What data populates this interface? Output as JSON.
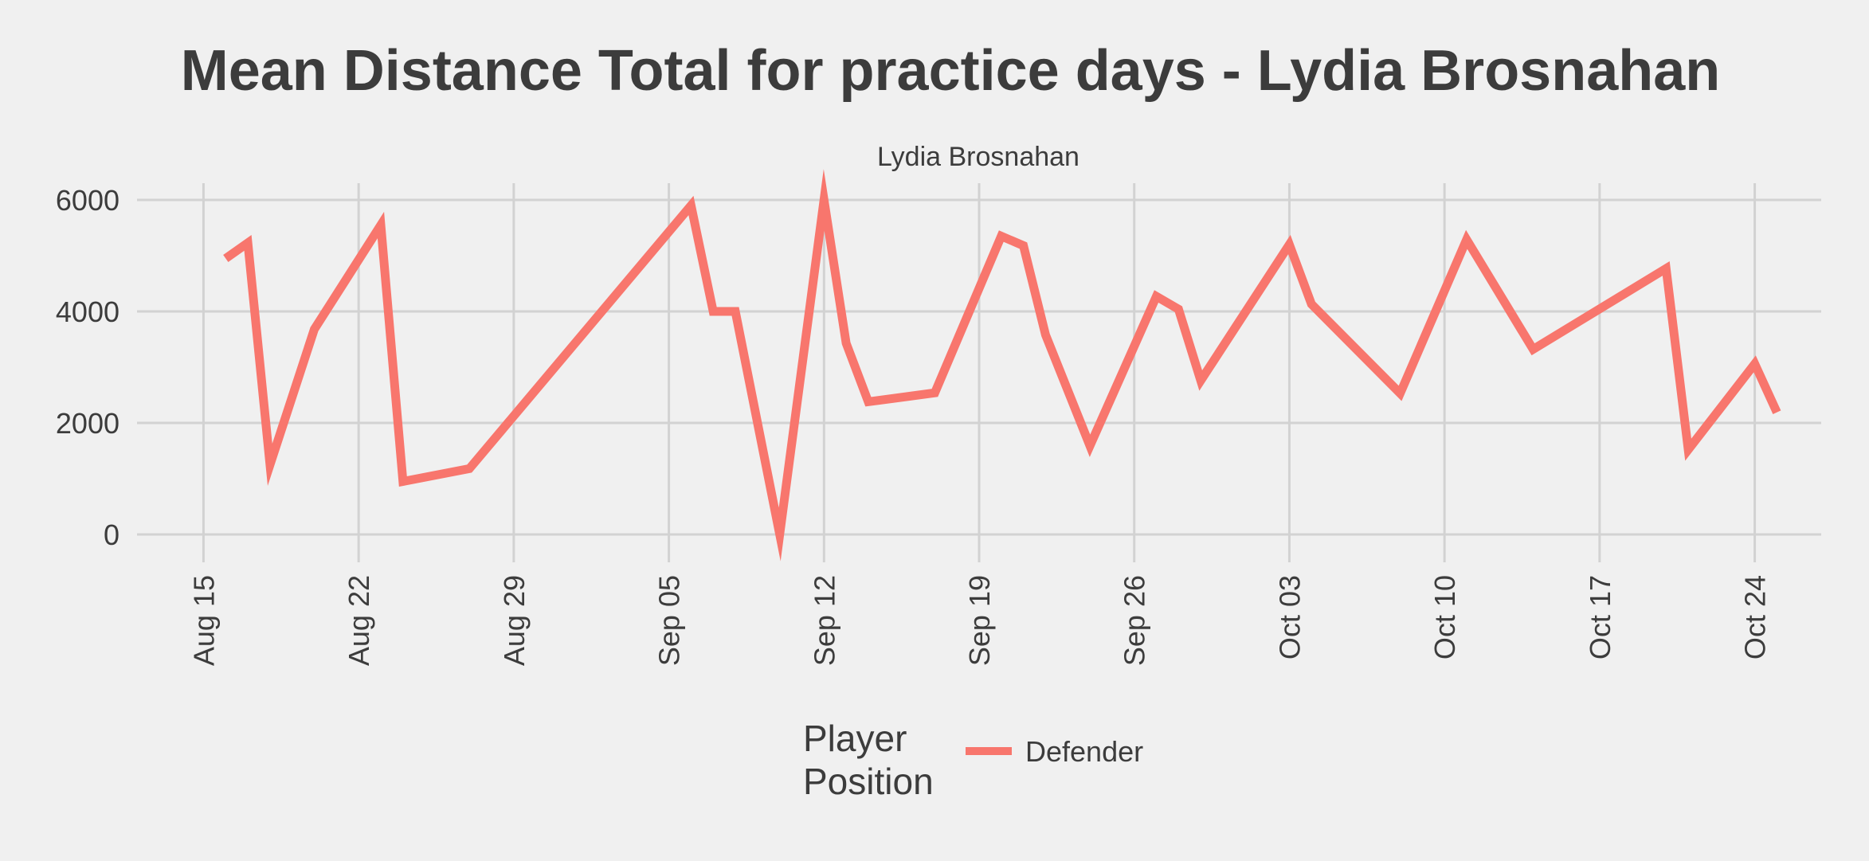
{
  "chart_data": {
    "type": "line",
    "title": "Mean Distance Total for practice days -  Lydia Brosnahan",
    "facet_label": "Lydia Brosnahan",
    "xlabel": "",
    "ylabel": "",
    "ylim": [
      0,
      6000
    ],
    "xlim": [
      "2021-08-12",
      "2021-10-27"
    ],
    "y_ticks": [
      0,
      2000,
      4000,
      6000
    ],
    "y_tick_labels": [
      "0",
      "2000",
      "4000",
      "6000"
    ],
    "x_ticks": [
      "2021-08-15",
      "2021-08-22",
      "2021-08-29",
      "2021-09-05",
      "2021-09-12",
      "2021-09-19",
      "2021-09-26",
      "2021-10-03",
      "2021-10-10",
      "2021-10-17",
      "2021-10-24"
    ],
    "x_tick_labels": [
      "Aug 15",
      "Aug 22",
      "Aug 29",
      "Sep 05",
      "Sep 12",
      "Sep 19",
      "Sep 26",
      "Oct 03",
      "Oct 10",
      "Oct 17",
      "Oct 24"
    ],
    "grid": true,
    "legend": {
      "title": [
        "Player",
        "Position"
      ],
      "placement": "bottom"
    },
    "series": [
      {
        "name": "Defender",
        "color": "#f8766d",
        "x": [
          "2021-08-16",
          "2021-08-17",
          "2021-08-18",
          "2021-08-20",
          "2021-08-23",
          "2021-08-24",
          "2021-08-27",
          "2021-09-06",
          "2021-09-07",
          "2021-09-08",
          "2021-09-10",
          "2021-09-12",
          "2021-09-13",
          "2021-09-14",
          "2021-09-17",
          "2021-09-20",
          "2021-09-21",
          "2021-09-22",
          "2021-09-24",
          "2021-09-27",
          "2021-09-28",
          "2021-09-29",
          "2021-10-03",
          "2021-10-04",
          "2021-10-08",
          "2021-10-11",
          "2021-10-14",
          "2021-10-20",
          "2021-10-21",
          "2021-10-24",
          "2021-10-25"
        ],
        "y": [
          4950,
          5230,
          1250,
          3680,
          5550,
          950,
          1180,
          5900,
          4000,
          4000,
          0,
          6000,
          3430,
          2380,
          2540,
          5350,
          5180,
          3580,
          1590,
          4270,
          4040,
          2760,
          5200,
          4130,
          2530,
          5290,
          3320,
          4770,
          1520,
          3060,
          2190
        ]
      }
    ]
  }
}
